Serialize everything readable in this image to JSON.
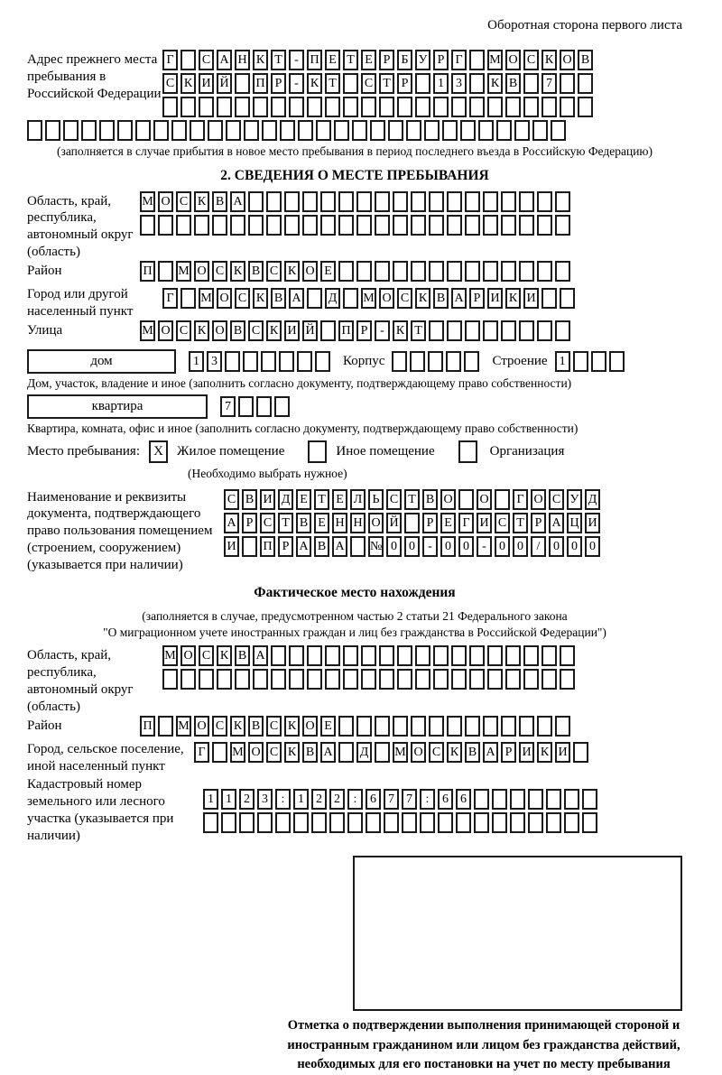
{
  "page": {
    "header_note": "Оборотная сторона первого листа"
  },
  "prev_address": {
    "label": "Адрес прежнего места пребывания в Российской Федерации",
    "rows": [
      {
        "text": "Г САНКТ-ПЕТЕРБУРГ МОСКОВ",
        "len": 24
      },
      {
        "text": "СКИЙ ПР-КТ СТР 13 КВ 7",
        "len": 24
      },
      {
        "text": "",
        "len": 24
      },
      {
        "text": "",
        "len": 30
      }
    ],
    "note": "(заполняется в случае прибытия в новое место пребывания в период последнего въезда в Российскую Федерацию)"
  },
  "section2": {
    "title": "2. СВЕДЕНИЯ О МЕСТЕ ПРЕБЫВАНИЯ",
    "oblast": {
      "label": "Область, край, республика, автономный округ (область)",
      "rows": [
        {
          "text": "МОСКВА",
          "len": 24
        },
        {
          "text": "",
          "len": 24
        }
      ]
    },
    "rayon": {
      "label": "Район",
      "row": {
        "text": "П МОСКВСКОЕ",
        "len": 24
      }
    },
    "gorod": {
      "label": "Город или другой населенный пункт",
      "row": {
        "text": "Г МОСКВА Д МОСКВАРИКИ",
        "len": 23
      }
    },
    "ulitsa": {
      "label": "Улица",
      "row": {
        "text": "МОСКОВСКИЙ ПР-КТ",
        "len": 24
      }
    },
    "dom": {
      "box_label": "дом",
      "cells": {
        "text": "13",
        "len": 8
      },
      "korpus_label": "Корпус",
      "korpus_cells": {
        "text": "",
        "len": 5
      },
      "stroenie_label": "Строение",
      "stroenie_cells": {
        "text": "1",
        "len": 4
      }
    },
    "dom_note": "Дом, участок, владение и иное (заполнить согласно документу, подтверждающему право собственности)",
    "kvartira": {
      "box_label": "квартира",
      "cells": {
        "text": "7",
        "len": 4
      }
    },
    "kvartira_note": "Квартира, комната, офис и иное (заполнить согласно документу, подтверждающему право собственности)",
    "mesto": {
      "label": "Место пребывания:",
      "options": [
        {
          "label": "Жилое помещение",
          "mark": "X"
        },
        {
          "label": "Иное помещение",
          "mark": ""
        },
        {
          "label": "Организация",
          "mark": ""
        }
      ],
      "note": "(Необходимо выбрать нужное)"
    },
    "doc": {
      "label": "Наименование и реквизиты документа, подтверждающего право пользования помещением (строением, сооружением) (указывается при наличии)",
      "rows": [
        {
          "text": "СВИДЕТЕЛЬСТВО О ГОСУД",
          "len": 21
        },
        {
          "text": "АРСТВЕННОЙ РЕГИСТРАЦИ",
          "len": 21
        },
        {
          "text": "И ПРАВА №00-00-00/000",
          "len": 21
        }
      ]
    }
  },
  "fact": {
    "title": "Фактическое место нахождения",
    "note1": "(заполняется в случае, предусмотренном частью 2 статьи 21 Федерального закона",
    "note2": "\"О миграционном учете иностранных граждан и лиц без гражданства в Российской Федерации\")",
    "oblast": {
      "label": "Область, край, республика, автономный округ (область)",
      "rows": [
        {
          "text": "МОСКВА",
          "len": 23
        },
        {
          "text": "",
          "len": 23
        }
      ]
    },
    "rayon": {
      "label": "Район",
      "row": {
        "text": "П МОСКВСКОЕ",
        "len": 24
      }
    },
    "gorod": {
      "label": "Город, сельское поселение, иной населенный пункт",
      "row": {
        "text": "Г МОСКВА Д МОСКВАРИКИ",
        "len": 22
      }
    },
    "kadastr": {
      "label": "Кадастровый номер земельного или лесного участка (указывается при наличии)",
      "rows": [
        {
          "text": "1123:122:677:66",
          "len": 22
        },
        {
          "text": "",
          "len": 22
        }
      ]
    },
    "stamp_caption": "Отметка о подтверждении выполнения принимающей стороной и иностранным гражданином или лицом без гражданства действий, необходимых для его постановки на учет по месту пребывания"
  }
}
